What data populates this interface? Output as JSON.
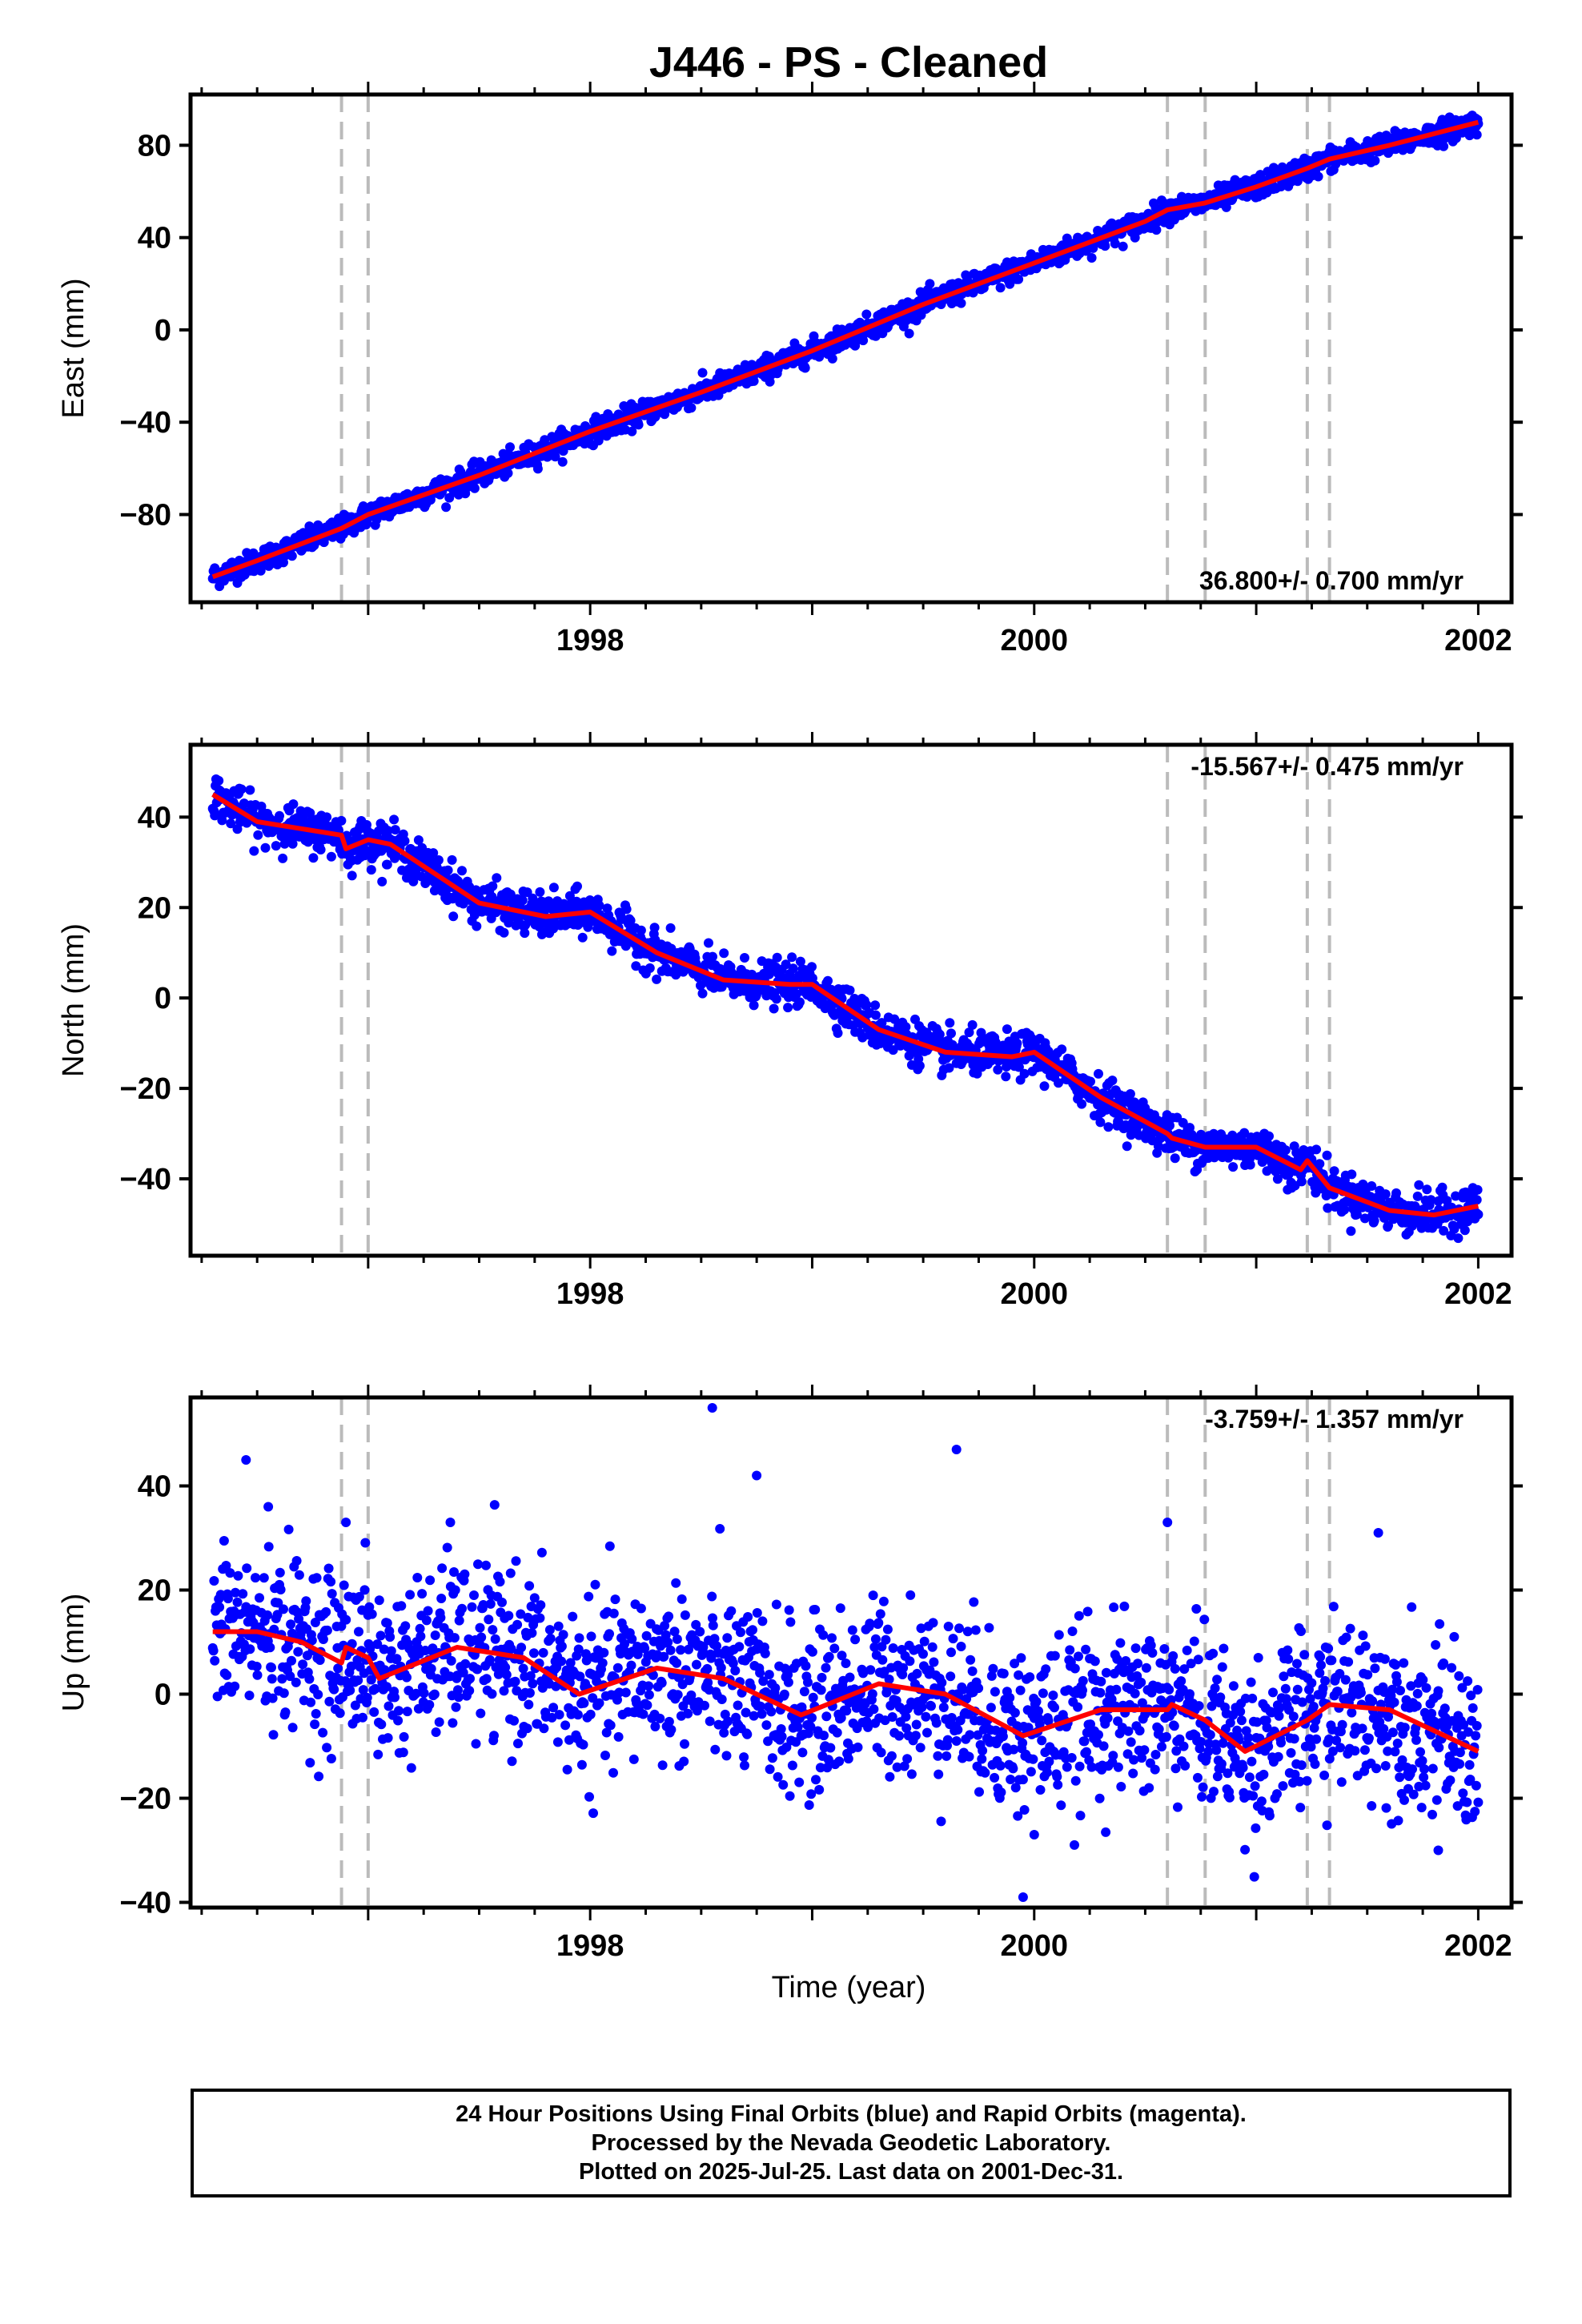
{
  "chart_data": {
    "title": "J446  - PS - Cleaned",
    "type": "scatter",
    "xlabel": "Time (year)",
    "x_ticks": [
      "1998",
      "2000",
      "2002"
    ],
    "xlim": [
      1996.2,
      2002.15
    ],
    "breaks": [
      1996.88,
      1997.0,
      2000.6,
      2000.77,
      2001.23,
      2001.33
    ],
    "colors": {
      "points": "#0000ff",
      "model": "#ff0000",
      "breaks": "#bbbbbb",
      "axes": "#000000"
    },
    "panels": [
      {
        "ylabel": "East (mm)",
        "ylim": [
          -118,
          102
        ],
        "y_ticks": [
          80,
          40,
          0,
          -40,
          -80
        ],
        "rate_label": "36.800+/- 0.700 mm/yr",
        "rate_position": "bottom-right",
        "x": [
          1996.3,
          1996.5,
          1996.88,
          1997.0,
          1997.5,
          1998.0,
          1998.5,
          1999.0,
          1999.5,
          2000.0,
          2000.5,
          2000.6,
          2000.77,
          2001.0,
          2001.23,
          2001.33,
          2001.6,
          2002.0
        ],
        "model": [
          -107,
          -100,
          -86,
          -80,
          -63,
          -44,
          -27,
          -9,
          11,
          29,
          47,
          52,
          55,
          62,
          70,
          74,
          80,
          90
        ],
        "scatter_sd": 2.5
      },
      {
        "ylabel": "North (mm)",
        "ylim": [
          -57,
          56
        ],
        "y_ticks": [
          40,
          20,
          0,
          -20,
          -40
        ],
        "rate_label": "-15.567+/- 0.475 mm/yr",
        "rate_position": "top-right",
        "x": [
          1996.3,
          1996.5,
          1996.88,
          1996.9,
          1997.0,
          1997.1,
          1997.5,
          1997.8,
          1998.0,
          1998.3,
          1998.6,
          1998.9,
          1999.0,
          1999.3,
          1999.6,
          1999.9,
          2000.0,
          2000.3,
          2000.6,
          2000.62,
          2000.77,
          2001.0,
          2001.2,
          2001.23,
          2001.33,
          2001.6,
          2001.8,
          2002.0
        ],
        "model": [
          45,
          39,
          36,
          33,
          35,
          34,
          21,
          18,
          19,
          10,
          4,
          3,
          3,
          -7,
          -12,
          -13,
          -12,
          -22,
          -30,
          -31,
          -33,
          -33,
          -38,
          -36,
          -42,
          -47,
          -48,
          -46
        ],
        "scatter_sd": 2.3
      },
      {
        "ylabel": "Up (mm)",
        "ylim": [
          -41,
          57
        ],
        "y_ticks": [
          40,
          20,
          0,
          -20,
          -40
        ],
        "rate_label": "-3.759+/- 1.357 mm/yr",
        "rate_position": "top-right",
        "x": [
          1996.3,
          1996.5,
          1996.7,
          1996.88,
          1996.9,
          1997.0,
          1997.05,
          1997.4,
          1997.7,
          1997.95,
          1998.3,
          1998.6,
          1998.95,
          1999.3,
          1999.6,
          1999.95,
          2000.3,
          2000.6,
          2000.62,
          2000.77,
          2000.95,
          2001.23,
          2001.33,
          2001.6,
          2002.0
        ],
        "model": [
          12,
          12,
          10,
          6,
          9,
          7,
          3,
          9,
          7,
          0,
          5,
          3,
          -4,
          2,
          0,
          -8,
          -3,
          -3,
          -2,
          -5,
          -11,
          -5,
          -2,
          -3,
          -11
        ],
        "scatter_sd": 8,
        "outliers": [
          [
            1996.45,
            45
          ],
          [
            1996.9,
            33
          ],
          [
            1997.37,
            33
          ],
          [
            1998.55,
            55
          ],
          [
            1998.75,
            42
          ],
          [
            1999.65,
            47
          ],
          [
            1999.95,
            -39
          ],
          [
            2000.6,
            33
          ],
          [
            2001.55,
            31
          ],
          [
            2001.82,
            -30
          ],
          [
            2000.0,
            -27
          ],
          [
            1996.55,
            36
          ]
        ]
      }
    ]
  },
  "footer": {
    "line1": "24 Hour Positions Using Final Orbits (blue) and Rapid Orbits (magenta).",
    "line2": "Processed by the Nevada Geodetic Laboratory.",
    "line3": "Plotted on 2025-Jul-25. Last data on 2001-Dec-31."
  }
}
